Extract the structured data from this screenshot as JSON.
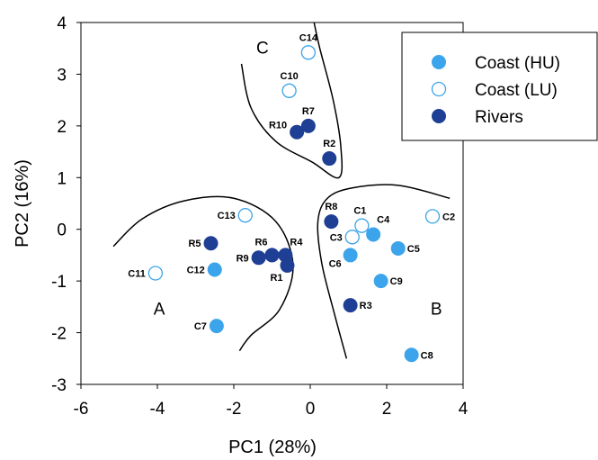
{
  "chart_data": {
    "type": "scatter",
    "title": "",
    "xlabel": "PC1 (28%)",
    "ylabel": "PC2 (16%)",
    "xlim": [
      -6,
      4
    ],
    "ylim": [
      -3,
      4
    ],
    "xticks": [
      -6,
      -4,
      -2,
      0,
      2,
      4
    ],
    "yticks": [
      -3,
      -2,
      -1,
      0,
      1,
      2,
      3,
      4
    ],
    "grid": false,
    "legend_position": "top-right",
    "series": [
      {
        "name": "Coast (HU)",
        "color": "#3ca4ea",
        "fill": "solid",
        "points": [
          {
            "label": "C4",
            "x": 1.65,
            "y": -0.1
          },
          {
            "label": "C5",
            "x": 2.3,
            "y": -0.37
          },
          {
            "label": "C6",
            "x": 1.05,
            "y": -0.5
          },
          {
            "label": "C9",
            "x": 1.85,
            "y": -1.0
          },
          {
            "label": "C8",
            "x": 2.65,
            "y": -2.43
          },
          {
            "label": "C12",
            "x": -2.5,
            "y": -0.78
          },
          {
            "label": "C7",
            "x": -2.45,
            "y": -1.87
          }
        ]
      },
      {
        "name": "Coast (LU)",
        "color": "#3ca4ea",
        "fill": "hollow",
        "points": [
          {
            "label": "C14",
            "x": -0.05,
            "y": 3.42
          },
          {
            "label": "C10",
            "x": -0.55,
            "y": 2.68
          },
          {
            "label": "C13",
            "x": -1.7,
            "y": 0.27
          },
          {
            "label": "C1",
            "x": 1.35,
            "y": 0.07
          },
          {
            "label": "C3",
            "x": 1.1,
            "y": -0.15
          },
          {
            "label": "C2",
            "x": 3.2,
            "y": 0.25
          },
          {
            "label": "C11",
            "x": -4.05,
            "y": -0.85
          }
        ]
      },
      {
        "name": "Rivers",
        "color": "#1f3f95",
        "fill": "solid",
        "points": [
          {
            "label": "R7",
            "x": -0.05,
            "y": 2.0
          },
          {
            "label": "R10",
            "x": -0.35,
            "y": 1.88
          },
          {
            "label": "R2",
            "x": 0.5,
            "y": 1.37
          },
          {
            "label": "R8",
            "x": 0.55,
            "y": 0.15
          },
          {
            "label": "R5",
            "x": -2.6,
            "y": -0.27
          },
          {
            "label": "R6",
            "x": -1.0,
            "y": -0.5
          },
          {
            "label": "R4",
            "x": -0.65,
            "y": -0.5
          },
          {
            "label": "R9",
            "x": -1.35,
            "y": -0.55
          },
          {
            "label": "R1",
            "x": -0.6,
            "y": -0.7
          },
          {
            "label": "R3",
            "x": 1.05,
            "y": -1.47
          }
        ]
      }
    ],
    "groups": [
      {
        "label": "A",
        "x": -3.95,
        "y": -1.65
      },
      {
        "label": "B",
        "x": 3.3,
        "y": -1.65
      },
      {
        "label": "C",
        "x": -1.25,
        "y": 3.4
      }
    ],
    "group_boundaries": [
      {
        "group": "A",
        "points": [
          [
            -5.15,
            -0.33
          ],
          [
            -4.4,
            0.2
          ],
          [
            -3.3,
            0.55
          ],
          [
            -2.0,
            0.6
          ],
          [
            -0.9,
            0.15
          ],
          [
            -0.45,
            -0.7
          ],
          [
            -0.8,
            -1.55
          ],
          [
            -1.55,
            -2.05
          ],
          [
            -1.85,
            -2.35
          ]
        ]
      },
      {
        "group": "B",
        "points": [
          [
            0.95,
            -2.5
          ],
          [
            0.62,
            -1.6
          ],
          [
            0.3,
            -0.65
          ],
          [
            0.2,
            0.15
          ],
          [
            0.45,
            0.6
          ],
          [
            1.1,
            0.8
          ],
          [
            2.3,
            0.85
          ],
          [
            3.65,
            0.6
          ]
        ]
      },
      {
        "group": "C",
        "points": [
          [
            -1.8,
            3.2
          ],
          [
            -1.55,
            2.35
          ],
          [
            -0.9,
            1.7
          ],
          [
            0.05,
            1.3
          ],
          [
            0.75,
            1.0
          ],
          [
            0.8,
            1.6
          ],
          [
            0.6,
            2.5
          ],
          [
            0.25,
            3.5
          ],
          [
            0.1,
            4.0
          ]
        ]
      }
    ]
  }
}
